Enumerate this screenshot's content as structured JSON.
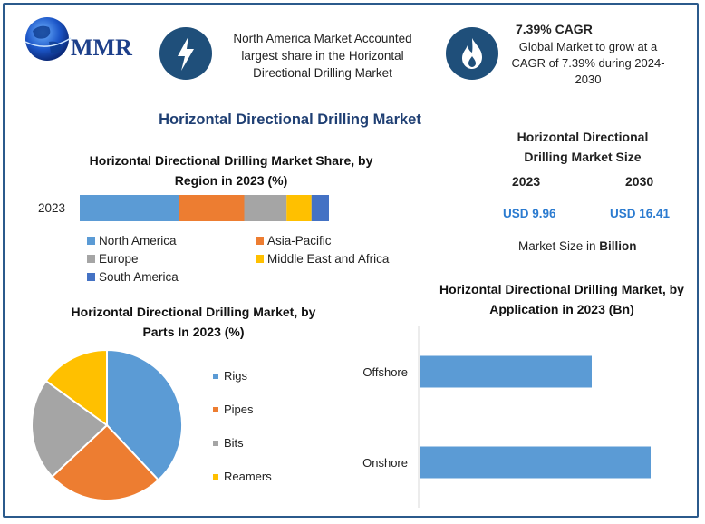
{
  "logo": {
    "text": "MMR"
  },
  "banner": {
    "left_text": "North America Market Accounted largest share in the Horizontal Directional Drilling Market",
    "cagr_title": "7.39% CAGR",
    "cagr_text": "Global Market to grow at a CAGR of 7.39% during 2024-2030",
    "left_icon": "lightning-icon",
    "right_icon": "flame-icon"
  },
  "main_title": "Horizontal Directional Drilling Market",
  "market_size": {
    "title": "Horizontal Directional Drilling Market Size",
    "year1": "2023",
    "year2": "2030",
    "value1": "USD 9.96",
    "value2": "USD 16.41",
    "note_prefix": "Market Size in ",
    "note_unit": "Billion"
  },
  "chart_data": [
    {
      "type": "bar",
      "orientation": "horizontal-stacked",
      "title": "Horizontal Directional Drilling Market Share, by Region in 2023 (%)",
      "categories": [
        "2023"
      ],
      "series": [
        {
          "name": "North America",
          "values": [
            40
          ],
          "color": "#5b9bd5"
        },
        {
          "name": "Asia-Pacific",
          "values": [
            26
          ],
          "color": "#ed7d31"
        },
        {
          "name": "Europe",
          "values": [
            17
          ],
          "color": "#a5a5a5"
        },
        {
          "name": "Middle East and Africa",
          "values": [
            10
          ],
          "color": "#ffc000"
        },
        {
          "name": "South America",
          "values": [
            7
          ],
          "color": "#4472c4"
        }
      ],
      "legend": "bottom"
    },
    {
      "type": "pie",
      "title": "Horizontal Directional Drilling Market, by Parts In 2023 (%)",
      "labels": [
        "Rigs",
        "Pipes",
        "Bits",
        "Reamers"
      ],
      "values": [
        38,
        25,
        22,
        15
      ],
      "colors": [
        "#5b9bd5",
        "#ed7d31",
        "#a5a5a5",
        "#ffc000"
      ],
      "legend": "right"
    },
    {
      "type": "bar",
      "orientation": "horizontal",
      "title": "Horizontal Directional Drilling Market, by Application in 2023 (Bn)",
      "categories": [
        "Offshore",
        "Onshore"
      ],
      "values": [
        3.8,
        5.1
      ],
      "xlim": [
        0,
        6
      ],
      "color": "#5b9bd5"
    }
  ]
}
